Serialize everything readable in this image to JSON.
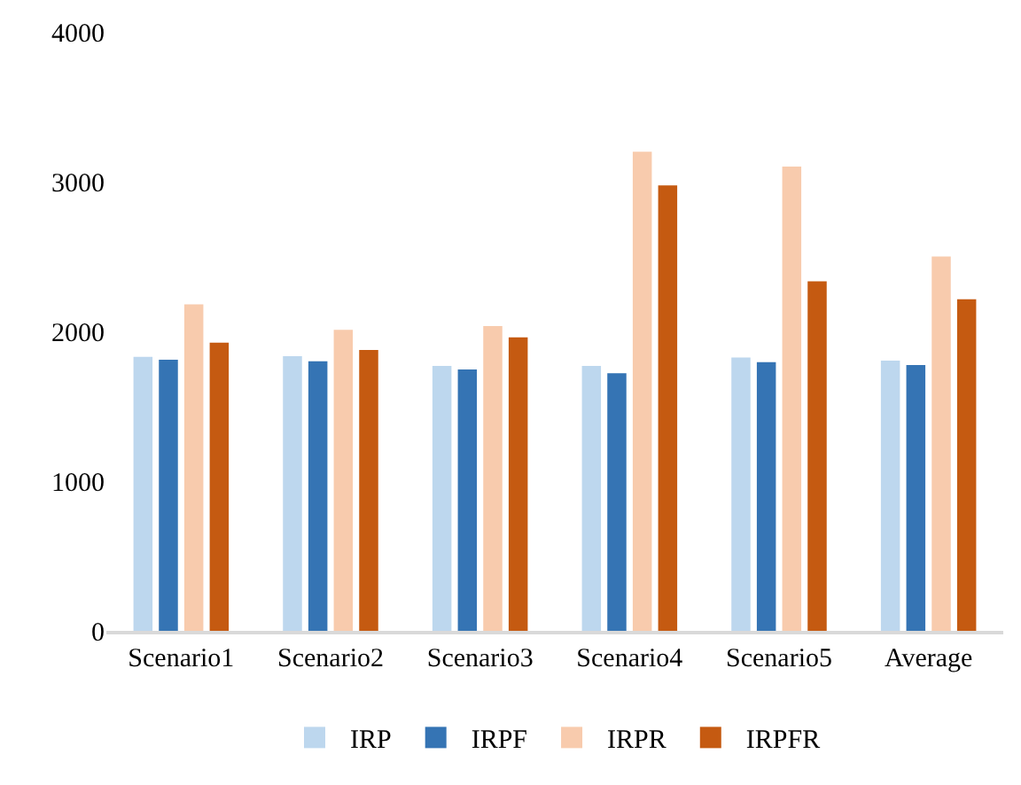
{
  "chart_data": {
    "type": "bar",
    "categories": [
      "Scenario1",
      "Scenario2",
      "Scenario3",
      "Scenario4",
      "Scenario5",
      "Average"
    ],
    "series": [
      {
        "name": "IRP",
        "color": "#bdd7ee",
        "values": [
          1830,
          1835,
          1770,
          1770,
          1825,
          1805
        ]
      },
      {
        "name": "IRPF",
        "color": "#3574b4",
        "values": [
          1810,
          1800,
          1745,
          1720,
          1795,
          1775
        ]
      },
      {
        "name": "IRPR",
        "color": "#f8cbad",
        "values": [
          2180,
          2010,
          2035,
          3200,
          3100,
          2500
        ]
      },
      {
        "name": "IRPFR",
        "color": "#c55a11",
        "values": [
          1925,
          1875,
          1960,
          2975,
          2335,
          2215
        ]
      }
    ],
    "ylim": [
      0,
      4000
    ],
    "yticks": [
      0,
      1000,
      2000,
      3000,
      4000
    ],
    "grid": false,
    "legend": "bottom"
  }
}
